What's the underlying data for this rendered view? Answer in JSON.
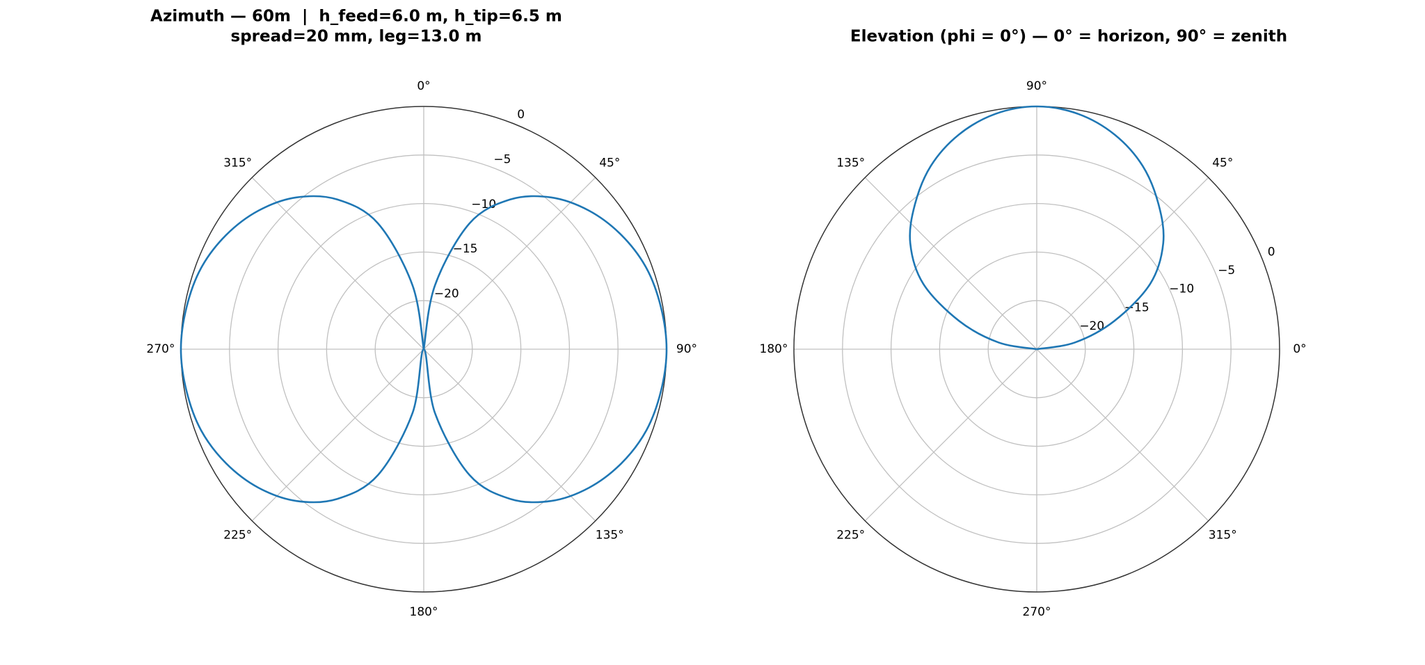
{
  "chart_data": [
    {
      "type": "polar",
      "title": [
        "Azimuth — 60m  |  h_feed=6.0 m, h_tip=6.5 m",
        "spread=20 mm, leg=13.0 m"
      ],
      "theta_zero": "N",
      "theta_direction": "clockwise",
      "rlim": [
        -25,
        0
      ],
      "rticks": [
        {
          "value": -20,
          "label": "−20"
        },
        {
          "value": -15,
          "label": "−15"
        },
        {
          "value": -10,
          "label": "−10"
        },
        {
          "value": -5,
          "label": "−5"
        },
        0
      ],
      "thetaticks": [
        {
          "value": 0,
          "label": "0°"
        },
        {
          "value": 45,
          "label": "45°"
        },
        {
          "value": 90,
          "label": "90°"
        },
        {
          "value": 135,
          "label": "135°"
        },
        {
          "value": 180,
          "label": "180°"
        },
        {
          "value": 225,
          "label": "225°"
        },
        {
          "value": 270,
          "label": "270°"
        },
        {
          "value": 315,
          "label": "315°"
        }
      ],
      "grid": true,
      "series": [
        {
          "color": "#1f77b4",
          "theta": [
            0,
            10,
            20,
            30,
            40,
            50,
            60,
            70,
            80,
            90,
            100,
            110,
            120,
            130,
            140,
            150,
            160,
            170,
            180,
            190,
            200,
            210,
            220,
            230,
            240,
            250,
            260,
            270,
            280,
            290,
            300,
            310,
            320,
            330,
            340,
            350,
            360
          ],
          "r": [
            -25,
            -18.3,
            -11.2,
            -7.2,
            -4.6,
            -2.8,
            -1.5,
            -0.6,
            -0.2,
            0,
            -0.2,
            -0.6,
            -1.5,
            -2.8,
            -4.6,
            -7.2,
            -11.2,
            -18.3,
            -25,
            -18.3,
            -11.2,
            -7.2,
            -4.6,
            -2.8,
            -1.5,
            -0.6,
            -0.2,
            0,
            -0.2,
            -0.6,
            -1.5,
            -2.8,
            -4.6,
            -7.2,
            -11.2,
            -18.3,
            -25
          ]
        }
      ]
    },
    {
      "type": "polar",
      "title": [
        "Elevation (phi = 0°) — 0° = horizon, 90° = zenith"
      ],
      "theta_zero": "E",
      "theta_direction": "counterclockwise",
      "rlim": [
        -25,
        0
      ],
      "rticks": [
        {
          "value": -20,
          "label": "−20"
        },
        {
          "value": -15,
          "label": "−15"
        },
        {
          "value": -10,
          "label": "−10"
        },
        {
          "value": -5,
          "label": "−5"
        },
        0
      ],
      "thetaticks": [
        {
          "value": 0,
          "label": "0°"
        },
        {
          "value": 45,
          "label": "45°"
        },
        {
          "value": 90,
          "label": "90°"
        },
        {
          "value": 135,
          "label": "135°"
        },
        {
          "value": 180,
          "label": "180°"
        },
        {
          "value": 225,
          "label": "225°"
        },
        {
          "value": 270,
          "label": "270°"
        },
        {
          "value": 315,
          "label": "315°"
        }
      ],
      "grid": true,
      "series": [
        {
          "color": "#1f77b4",
          "theta": [
            0,
            10,
            20,
            30,
            40,
            50,
            60,
            70,
            80,
            90,
            100,
            110,
            120,
            130,
            140,
            150,
            160,
            170,
            180
          ],
          "r": [
            -25,
            -21,
            -16.5,
            -11.5,
            -8,
            -5.5,
            -3.2,
            -1.5,
            -0.4,
            0,
            -0.4,
            -1.5,
            -3.2,
            -5.5,
            -8,
            -11.5,
            -16.5,
            -21,
            -25
          ]
        }
      ]
    }
  ]
}
